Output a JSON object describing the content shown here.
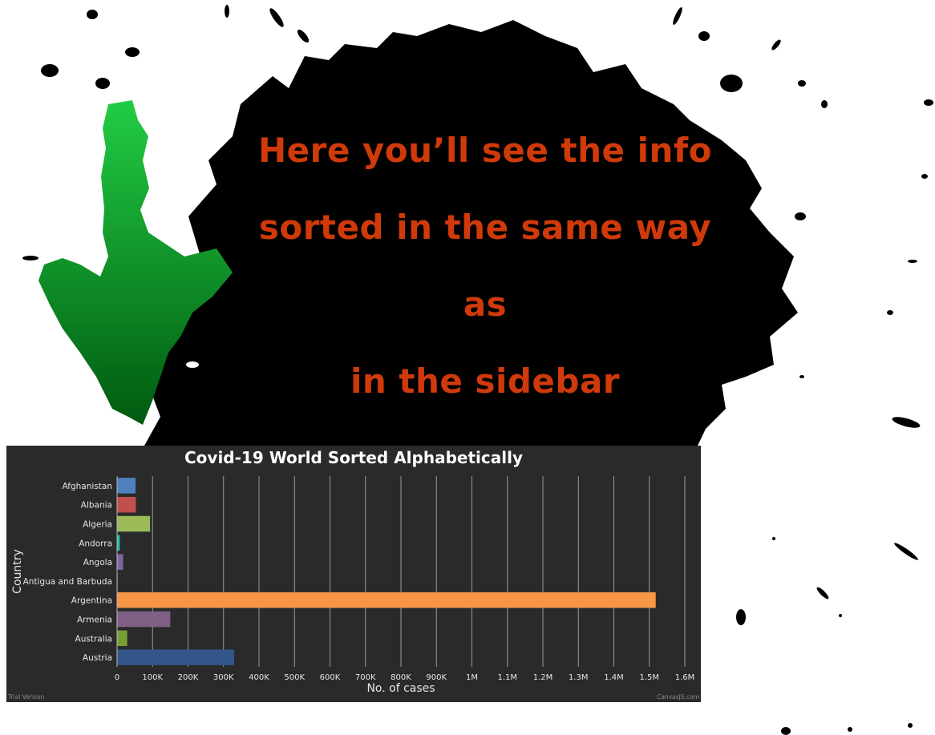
{
  "headline": {
    "line1": "Here you’ll see the info",
    "line2": "sorted in the same way as",
    "line3": "in the sidebar"
  },
  "colors": {
    "headline": "#d03a0a",
    "panel_bg": "#2a2a2a",
    "leaf_top": "#22cc44",
    "leaf_bottom": "#005a10"
  },
  "chart_data": {
    "type": "bar",
    "orientation": "horizontal",
    "title": "Covid-19 World  Sorted Alphabetically",
    "xlabel": "No. of cases",
    "ylabel": "Country",
    "xlim": [
      0,
      1600000
    ],
    "x_ticks": [
      "0",
      "100K",
      "200K",
      "300K",
      "400K",
      "500K",
      "600K",
      "700K",
      "800K",
      "900K",
      "1M",
      "1.1M",
      "1.2M",
      "1.3M",
      "1.4M",
      "1.5M",
      "1.6M"
    ],
    "grid": true,
    "categories": [
      "Afghanistan",
      "Albania",
      "Algeria",
      "Andorra",
      "Angola",
      "Antigua and Barbuda",
      "Argentina",
      "Armenia",
      "Australia",
      "Austria"
    ],
    "values": [
      52000,
      53000,
      93000,
      7500,
      17000,
      1400,
      1518000,
      150000,
      28500,
      330000
    ],
    "colors": [
      "#4f81bc",
      "#c0504e",
      "#9bbb58",
      "#23bfaa",
      "#8064a1",
      "#4aacc5",
      "#f79647",
      "#7f6084",
      "#77a033",
      "#33558b"
    ],
    "credit_left": "Trial Version",
    "credit_right": "CanvasJS.com"
  }
}
